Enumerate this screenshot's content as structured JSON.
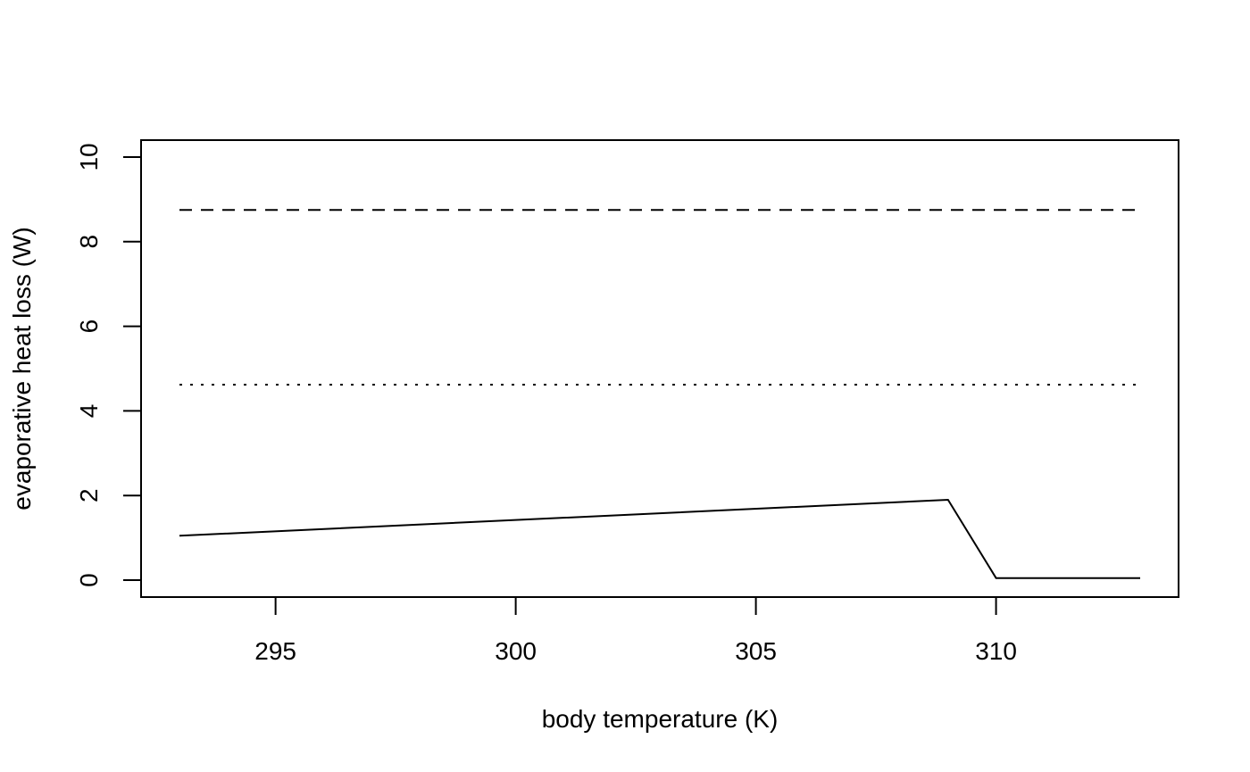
{
  "chart_data": {
    "type": "line",
    "title": "",
    "xlabel": "body temperature (K)",
    "ylabel": "evaporative heat loss (W)",
    "xlim": [
      292.2,
      313.8
    ],
    "ylim": [
      -0.4,
      10.4
    ],
    "xticks": [
      295,
      300,
      305,
      310
    ],
    "yticks": [
      0,
      2,
      4,
      6,
      8,
      10
    ],
    "grid": false,
    "legend": "none",
    "series": [
      {
        "style": "solid",
        "color": "#000000",
        "x": [
          293,
          309,
          310,
          313
        ],
        "y": [
          1.05,
          1.9,
          0.05,
          0.05
        ]
      },
      {
        "style": "dotted",
        "color": "#000000",
        "x": [
          293,
          313
        ],
        "y": [
          4.62,
          4.62
        ]
      },
      {
        "style": "dashed",
        "color": "#000000",
        "x": [
          293,
          313
        ],
        "y": [
          8.75,
          8.75
        ]
      }
    ]
  }
}
